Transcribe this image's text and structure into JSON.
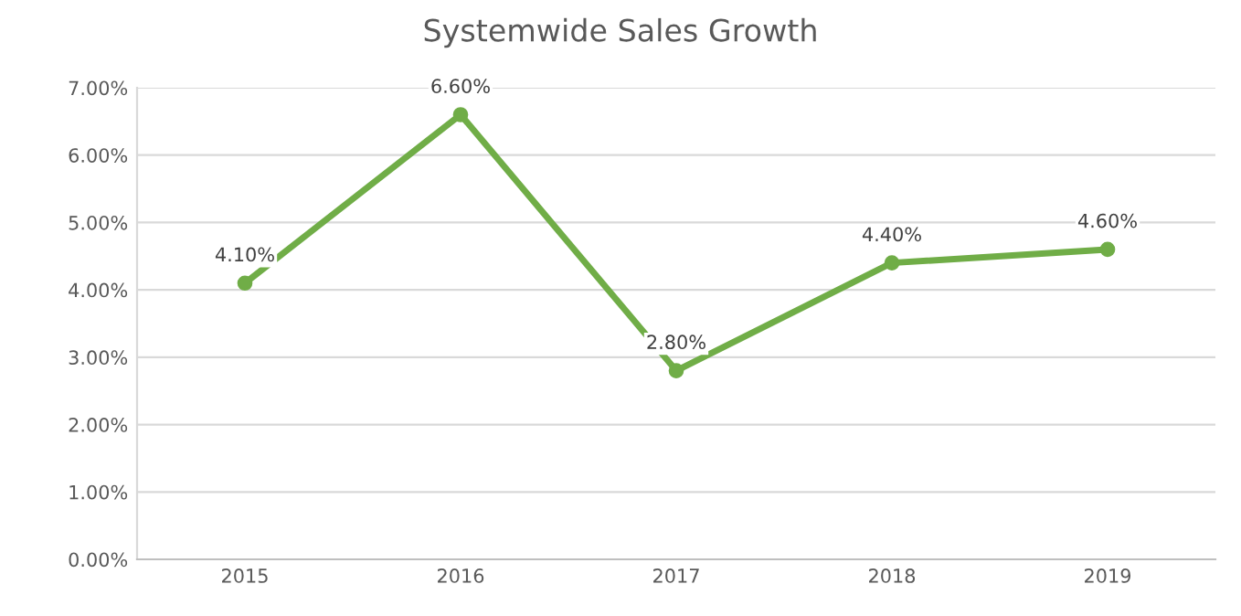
{
  "chart_data": {
    "type": "line",
    "title": "Systemwide Sales Growth",
    "categories": [
      "2015",
      "2016",
      "2017",
      "2018",
      "2019"
    ],
    "series": [
      {
        "color": "#70ad47",
        "values": [
          4.1,
          6.6,
          2.8,
          4.4,
          4.6
        ],
        "value_labels": [
          "4.10%",
          "6.60%",
          "2.80%",
          "4.40%",
          "4.60%"
        ]
      }
    ],
    "ylim": [
      0,
      7
    ],
    "yticks": [
      {
        "value": 0,
        "label": "0.00%"
      },
      {
        "value": 1,
        "label": "1.00%"
      },
      {
        "value": 2,
        "label": "2.00%"
      },
      {
        "value": 3,
        "label": "3.00%"
      },
      {
        "value": 4,
        "label": "4.00%"
      },
      {
        "value": 5,
        "label": "5.00%"
      },
      {
        "value": 6,
        "label": "6.00%"
      },
      {
        "value": 7,
        "label": "7.00%"
      }
    ],
    "grid": "y",
    "marker": "circle",
    "line_style": "solid"
  }
}
